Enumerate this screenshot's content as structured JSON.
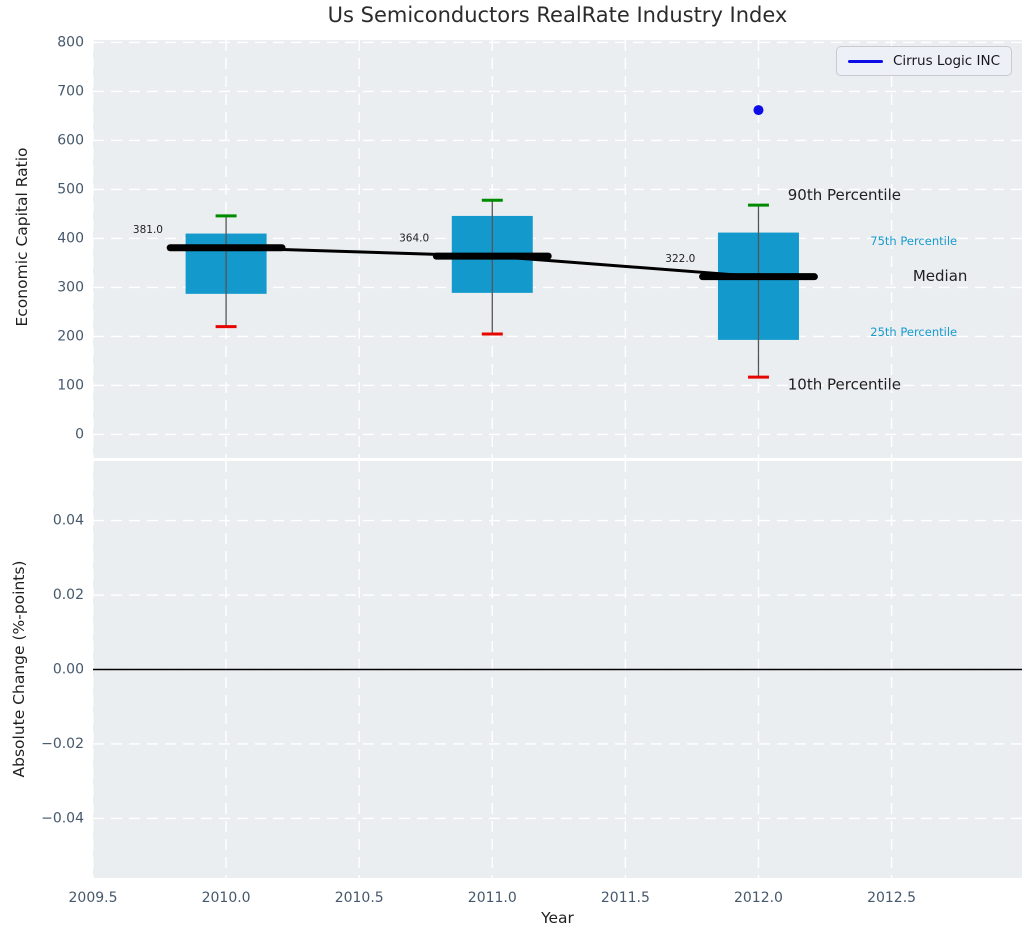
{
  "title": "Us Semiconductors RealRate Industry Index",
  "legend": {
    "label": "Cirrus Logic INC"
  },
  "colors": {
    "axes_bg": "#eaeef1",
    "grid": "#ffffff",
    "box_fill": "#1499cd",
    "median_line": "#000000",
    "whisker": "#555555",
    "cap_top": "#008a00",
    "cap_bottom": "#e60600",
    "company": "#0d0de8",
    "tick_label": "#46586c",
    "text_dark": "#1f1f1f",
    "percentile_label": "#189bce"
  },
  "chart_data": [
    {
      "type": "boxplot",
      "ylabel": "Economic Capital Ratio",
      "xlim": [
        2009.5,
        2012.99
      ],
      "ylim": [
        -48,
        805
      ],
      "grid": true,
      "legend_entry": "Cirrus Logic INC",
      "legend_position": "upper right",
      "xticks": [
        {
          "v": 2009.5,
          "label": "2009.5"
        },
        {
          "v": 2010.0,
          "label": "2010.0"
        },
        {
          "v": 2010.5,
          "label": "2010.5"
        },
        {
          "v": 2011.0,
          "label": "2011.0"
        },
        {
          "v": 2011.5,
          "label": "2011.5"
        },
        {
          "v": 2012.0,
          "label": "2012.0"
        },
        {
          "v": 2012.5,
          "label": "2012.5"
        }
      ],
      "yticks": [
        {
          "v": 0,
          "label": "0"
        },
        {
          "v": 100,
          "label": "100"
        },
        {
          "v": 200,
          "label": "200"
        },
        {
          "v": 300,
          "label": "300"
        },
        {
          "v": 400,
          "label": "400"
        },
        {
          "v": 500,
          "label": "500"
        },
        {
          "v": 600,
          "label": "600"
        },
        {
          "v": 700,
          "label": "700"
        },
        {
          "v": 800,
          "label": "800"
        }
      ],
      "boxes": [
        {
          "x": 2010,
          "p10": 220,
          "p25": 287,
          "median": 381,
          "p75": 410,
          "p90": 446,
          "annotation": "381.0"
        },
        {
          "x": 2011,
          "p10": 205,
          "p25": 289,
          "median": 364,
          "p75": 446,
          "p90": 478,
          "annotation": "364.0"
        },
        {
          "x": 2012,
          "p10": 117,
          "p25": 193,
          "median": 322,
          "p75": 412,
          "p90": 468,
          "annotation": "322.0"
        }
      ],
      "median_trend": [
        [
          2010,
          381
        ],
        [
          2011,
          364
        ],
        [
          2012,
          322
        ]
      ],
      "company_series": {
        "name": "Cirrus Logic INC",
        "points": [
          [
            2012,
            662
          ]
        ]
      },
      "percentile_labels": [
        {
          "text": "90th Percentile",
          "x": 2012.11,
          "y": 489,
          "size": 15,
          "tone": "dark"
        },
        {
          "text": "75th Percentile",
          "x": 2012.42,
          "y": 395,
          "size": 11.5,
          "tone": "accent"
        },
        {
          "text": "Median",
          "x": 2012.58,
          "y": 323,
          "size": 15,
          "tone": "dark"
        },
        {
          "text": "25th Percentile",
          "x": 2012.42,
          "y": 209,
          "size": 11.5,
          "tone": "accent"
        },
        {
          "text": "10th Percentile",
          "x": 2012.11,
          "y": 102,
          "size": 15,
          "tone": "dark"
        }
      ]
    },
    {
      "type": "line",
      "ylabel": "Absolute Change (%-points)",
      "xlabel": "Year",
      "ylim": [
        -0.056,
        0.056
      ],
      "grid": true,
      "zero_line": 0.0,
      "yticks": [
        {
          "v": 0.04,
          "label": "0.04"
        },
        {
          "v": 0.02,
          "label": "0.02"
        },
        {
          "v": 0.0,
          "label": "0.00"
        },
        {
          "v": -0.02,
          "label": "−0.02"
        },
        {
          "v": -0.04,
          "label": "−0.04"
        }
      ]
    }
  ]
}
